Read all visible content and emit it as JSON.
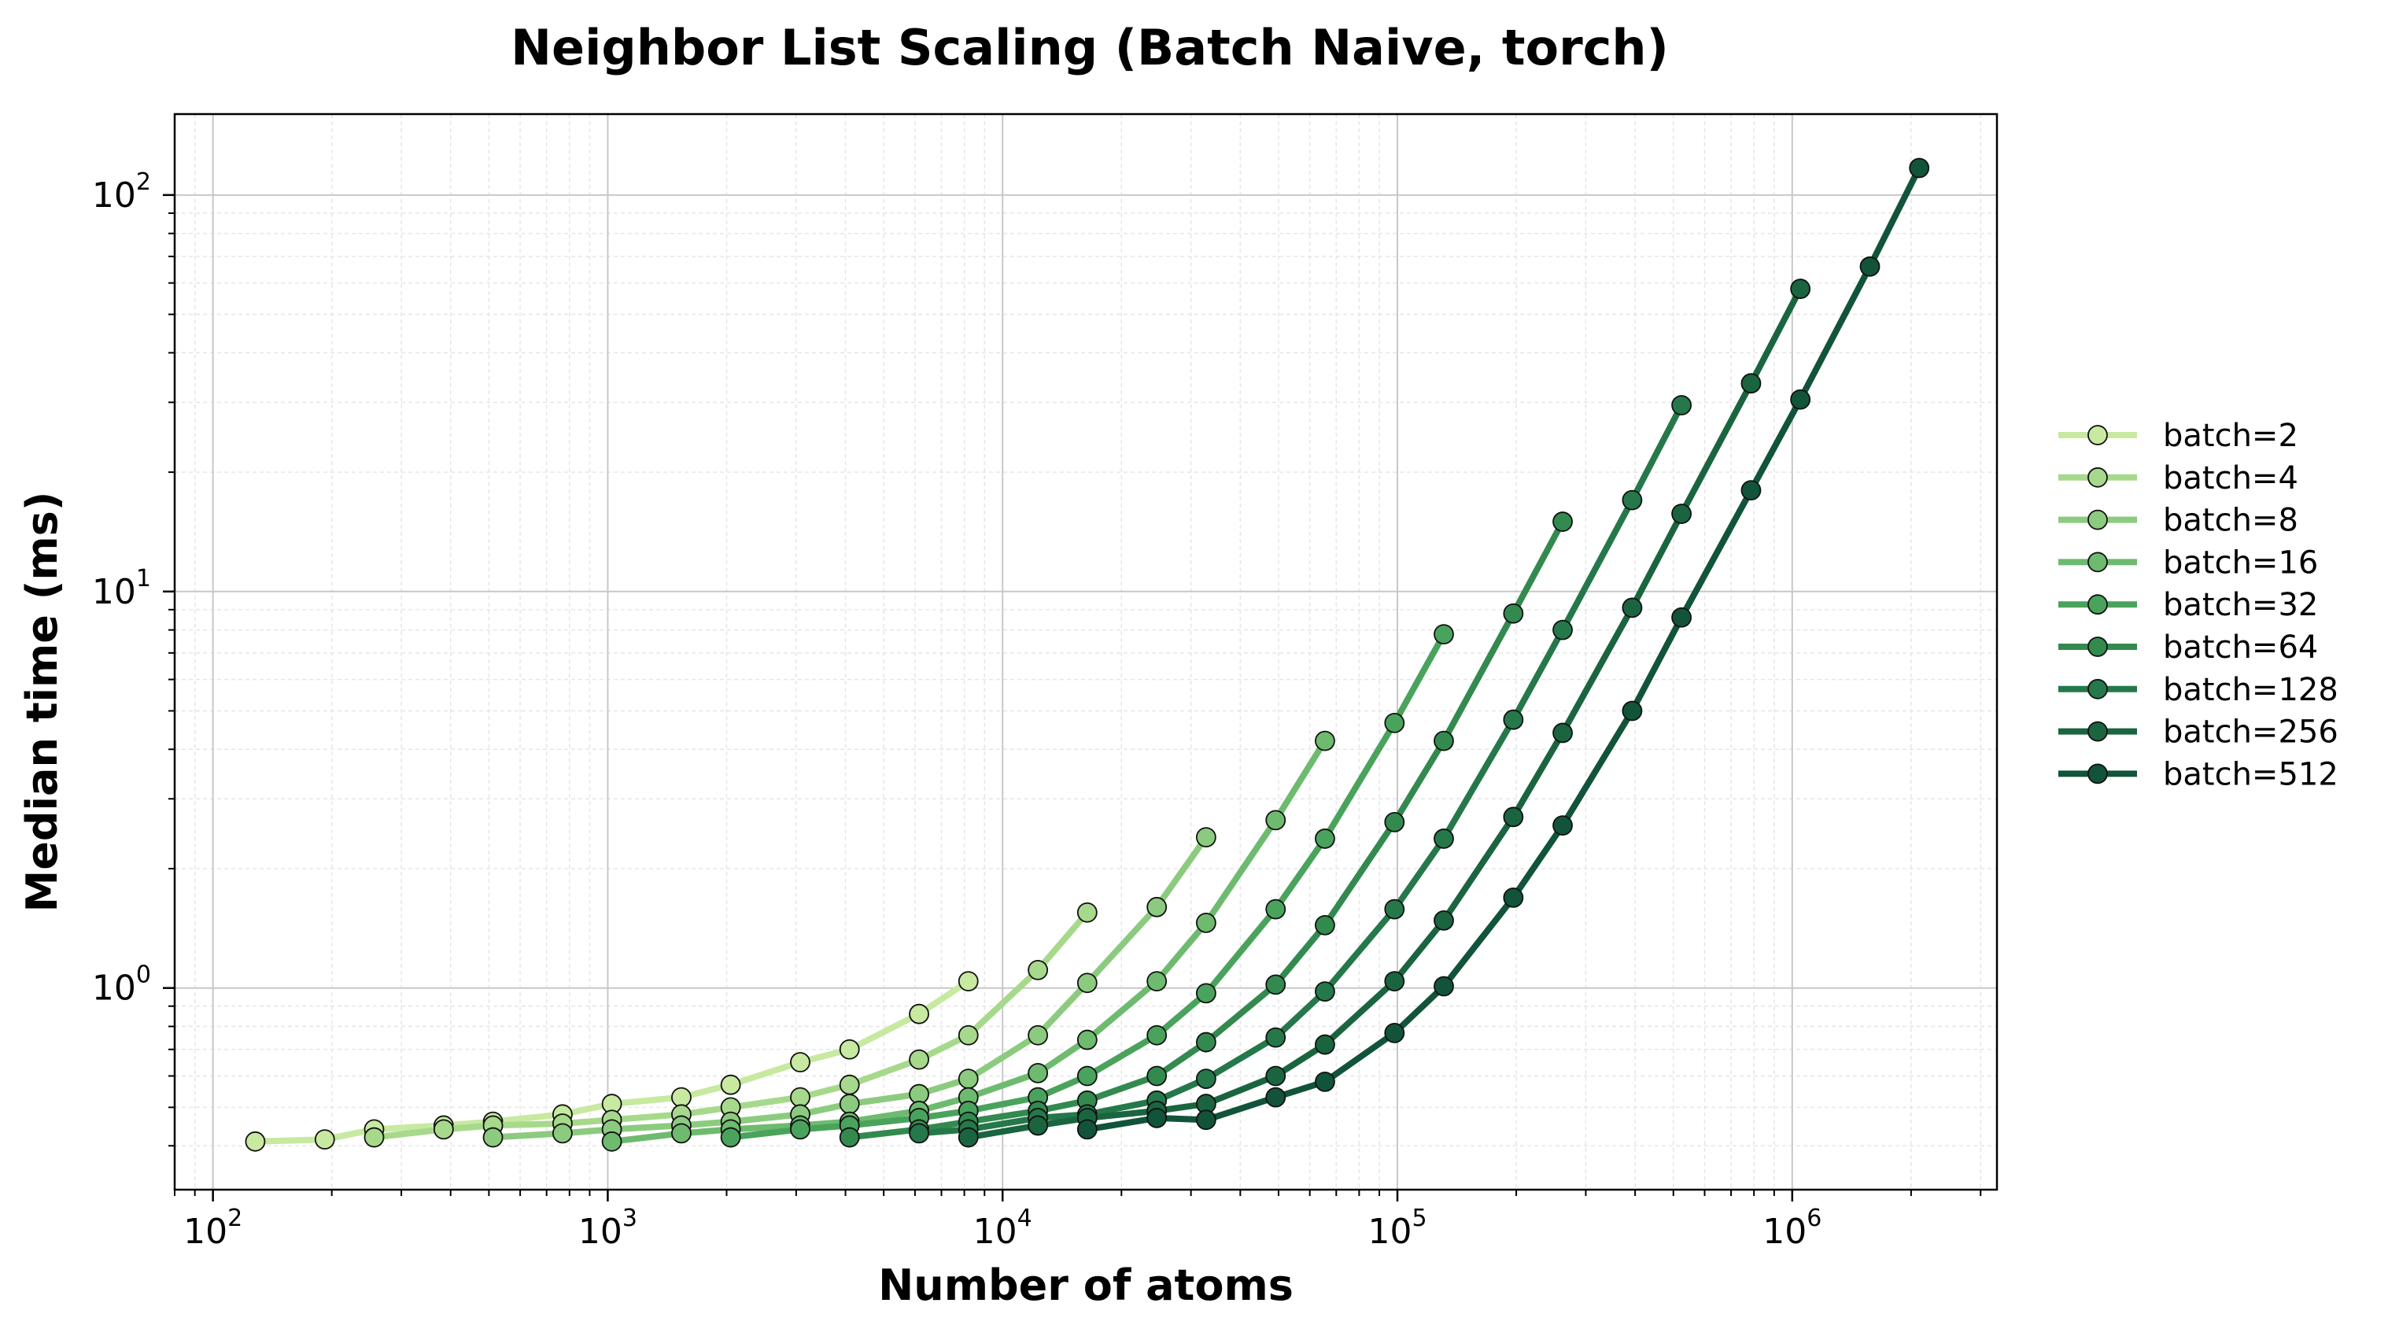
{
  "chart_data": {
    "type": "line",
    "title": "Neighbor List Scaling (Batch Naive, torch)",
    "xlabel": "Number of atoms",
    "ylabel": "Median time (ms)",
    "xscale": "log",
    "yscale": "log",
    "xlim": [
      80,
      3300000
    ],
    "ylim": [
      0.31,
      160
    ],
    "x_ticks": [
      {
        "base": "10",
        "exp": "2",
        "value": 100
      },
      {
        "base": "10",
        "exp": "3",
        "value": 1000
      },
      {
        "base": "10",
        "exp": "4",
        "value": 10000
      },
      {
        "base": "10",
        "exp": "5",
        "value": 100000
      },
      {
        "base": "10",
        "exp": "6",
        "value": 1000000
      }
    ],
    "y_ticks": [
      {
        "base": "10",
        "exp": "0",
        "value": 1
      },
      {
        "base": "10",
        "exp": "1",
        "value": 10
      },
      {
        "base": "10",
        "exp": "2",
        "value": 100
      }
    ],
    "grid": true,
    "legend_position": "right",
    "series": [
      {
        "name": "batch=2",
        "color": "#c7e9a0",
        "x": [
          128,
          192,
          256,
          384,
          512,
          768,
          1024,
          1536,
          2048,
          3072,
          4096,
          6144,
          8192
        ],
        "y": [
          0.41,
          0.415,
          0.44,
          0.45,
          0.46,
          0.48,
          0.51,
          0.53,
          0.57,
          0.65,
          0.7,
          0.86,
          1.04
        ]
      },
      {
        "name": "batch=4",
        "color": "#a7d98c",
        "x": [
          256,
          384,
          512,
          768,
          1024,
          1536,
          2048,
          3072,
          4096,
          6144,
          8192,
          12288,
          16384
        ],
        "y": [
          0.42,
          0.44,
          0.45,
          0.455,
          0.465,
          0.48,
          0.5,
          0.53,
          0.57,
          0.66,
          0.76,
          1.11,
          1.55
        ]
      },
      {
        "name": "batch=8",
        "color": "#8ccb7f",
        "x": [
          512,
          768,
          1024,
          1536,
          2048,
          3072,
          4096,
          6144,
          8192,
          12288,
          16384,
          24576,
          32768
        ],
        "y": [
          0.42,
          0.43,
          0.44,
          0.45,
          0.46,
          0.48,
          0.51,
          0.54,
          0.59,
          0.76,
          1.03,
          1.6,
          2.4
        ]
      },
      {
        "name": "batch=16",
        "color": "#6ebb6f",
        "x": [
          1024,
          1536,
          2048,
          3072,
          4096,
          6144,
          8192,
          12288,
          16384,
          24576,
          32768,
          49152,
          65536
        ],
        "y": [
          0.41,
          0.43,
          0.44,
          0.45,
          0.46,
          0.49,
          0.53,
          0.61,
          0.74,
          1.04,
          1.46,
          2.65,
          4.2
        ]
      },
      {
        "name": "batch=32",
        "color": "#4aa35c",
        "x": [
          2048,
          3072,
          4096,
          6144,
          8192,
          12288,
          16384,
          24576,
          32768,
          49152,
          65536,
          98304,
          131072
        ],
        "y": [
          0.42,
          0.44,
          0.45,
          0.47,
          0.49,
          0.53,
          0.6,
          0.76,
          0.97,
          1.58,
          2.38,
          4.66,
          7.8
        ]
      },
      {
        "name": "batch=64",
        "color": "#338a4f",
        "x": [
          4096,
          6144,
          8192,
          12288,
          16384,
          24576,
          32768,
          49152,
          65536,
          98304,
          131072,
          196608,
          262144
        ],
        "y": [
          0.42,
          0.44,
          0.46,
          0.49,
          0.52,
          0.6,
          0.73,
          1.02,
          1.44,
          2.62,
          4.2,
          8.8,
          15.0
        ]
      },
      {
        "name": "batch=128",
        "color": "#25784a",
        "x": [
          6144,
          8192,
          12288,
          16384,
          24576,
          32768,
          49152,
          65536,
          98304,
          131072,
          196608,
          262144,
          393216,
          524288
        ],
        "y": [
          0.43,
          0.44,
          0.47,
          0.48,
          0.52,
          0.59,
          0.75,
          0.98,
          1.58,
          2.38,
          4.75,
          8.0,
          17.0,
          29.5
        ]
      },
      {
        "name": "batch=256",
        "color": "#1a6540",
        "x": [
          8192,
          12288,
          16384,
          24576,
          32768,
          49152,
          65536,
          98304,
          131072,
          196608,
          262144,
          393216,
          524288,
          786432,
          1048576
        ],
        "y": [
          0.42,
          0.45,
          0.47,
          0.49,
          0.51,
          0.6,
          0.72,
          1.04,
          1.48,
          2.7,
          4.4,
          9.1,
          15.7,
          33.5,
          58.0
        ]
      },
      {
        "name": "batch=512",
        "color": "#11543a",
        "x": [
          16384,
          24576,
          32768,
          49152,
          65536,
          98304,
          131072,
          196608,
          262144,
          393216,
          524288,
          786432,
          1048576,
          1572864,
          2097152
        ],
        "y": [
          0.44,
          0.47,
          0.465,
          0.53,
          0.58,
          0.77,
          1.01,
          1.69,
          2.57,
          5.0,
          8.6,
          18.0,
          30.5,
          66.0,
          117.0
        ]
      }
    ]
  }
}
